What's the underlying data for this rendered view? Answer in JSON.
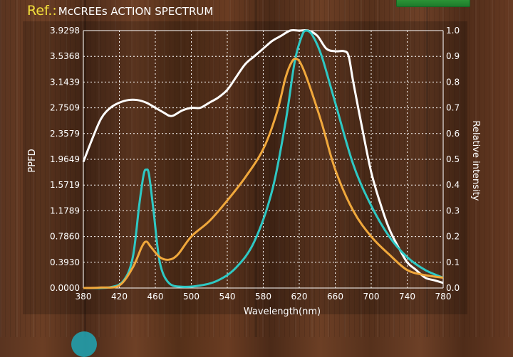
{
  "header": {
    "ref_label": "Ref.:",
    "title": "McCREEs ACTION SPECTRUM"
  },
  "colors": {
    "white_series": "#ffffff",
    "teal_series": "#2ec8c4",
    "orange_series": "#f0a83c",
    "ref_label": "#f3e03b",
    "button": "#2f9c3a"
  },
  "chart_data": {
    "type": "line",
    "xlabel": "Wavelength(nm)",
    "ylabel_left": "PPFD",
    "ylabel_right": "Relative intensity",
    "xlim": [
      380,
      780
    ],
    "ylim_left": [
      0,
      3.9298
    ],
    "ylim_right": [
      0,
      1.0
    ],
    "x_ticks": [
      "380",
      "420",
      "460",
      "500",
      "540",
      "580",
      "620",
      "660",
      "700",
      "740",
      "780"
    ],
    "y_ticks_left": [
      "0.0000",
      "0.3930",
      "0.7860",
      "1.1789",
      "1.5719",
      "1.9649",
      "2.3579",
      "2.7509",
      "3.1439",
      "3.5368",
      "3.9298"
    ],
    "y_ticks_right": [
      "0.0",
      "0.1",
      "0.2",
      "0.3",
      "0.4",
      "0.5",
      "0.6",
      "0.7",
      "0.8",
      "0.9",
      "1.0"
    ],
    "grid": true,
    "series": [
      {
        "color": "white",
        "points": [
          [
            380,
            0.49
          ],
          [
            390,
            0.58
          ],
          [
            400,
            0.66
          ],
          [
            410,
            0.7
          ],
          [
            420,
            0.72
          ],
          [
            430,
            0.73
          ],
          [
            440,
            0.73
          ],
          [
            450,
            0.72
          ],
          [
            460,
            0.7
          ],
          [
            470,
            0.68
          ],
          [
            475,
            0.67
          ],
          [
            480,
            0.67
          ],
          [
            490,
            0.69
          ],
          [
            500,
            0.7
          ],
          [
            510,
            0.7
          ],
          [
            520,
            0.72
          ],
          [
            530,
            0.74
          ],
          [
            540,
            0.77
          ],
          [
            550,
            0.82
          ],
          [
            560,
            0.87
          ],
          [
            570,
            0.9
          ],
          [
            580,
            0.93
          ],
          [
            590,
            0.96
          ],
          [
            600,
            0.98
          ],
          [
            610,
            1.0
          ],
          [
            620,
            1.0
          ],
          [
            630,
            1.0
          ],
          [
            640,
            0.98
          ],
          [
            650,
            0.93
          ],
          [
            660,
            0.92
          ],
          [
            670,
            0.92
          ],
          [
            675,
            0.9
          ],
          [
            680,
            0.8
          ],
          [
            690,
            0.62
          ],
          [
            700,
            0.45
          ],
          [
            710,
            0.33
          ],
          [
            720,
            0.23
          ],
          [
            730,
            0.16
          ],
          [
            740,
            0.1
          ],
          [
            750,
            0.07
          ],
          [
            760,
            0.04
          ],
          [
            770,
            0.03
          ],
          [
            780,
            0.02
          ]
        ]
      },
      {
        "color": "teal",
        "points": [
          [
            380,
            0.0
          ],
          [
            410,
            0.003
          ],
          [
            425,
            0.03
          ],
          [
            435,
            0.12
          ],
          [
            442,
            0.32
          ],
          [
            447,
            0.44
          ],
          [
            450,
            0.46
          ],
          [
            453,
            0.44
          ],
          [
            458,
            0.3
          ],
          [
            465,
            0.1
          ],
          [
            475,
            0.02
          ],
          [
            490,
            0.005
          ],
          [
            510,
            0.01
          ],
          [
            530,
            0.03
          ],
          [
            550,
            0.08
          ],
          [
            570,
            0.18
          ],
          [
            590,
            0.38
          ],
          [
            605,
            0.65
          ],
          [
            615,
            0.88
          ],
          [
            623,
            0.98
          ],
          [
            628,
            1.0
          ],
          [
            635,
            0.98
          ],
          [
            645,
            0.9
          ],
          [
            660,
            0.72
          ],
          [
            680,
            0.48
          ],
          [
            700,
            0.32
          ],
          [
            720,
            0.2
          ],
          [
            740,
            0.12
          ],
          [
            760,
            0.07
          ],
          [
            780,
            0.04
          ]
        ]
      },
      {
        "color": "orange",
        "points": [
          [
            380,
            0.0
          ],
          [
            400,
            0.002
          ],
          [
            420,
            0.01
          ],
          [
            435,
            0.08
          ],
          [
            445,
            0.16
          ],
          [
            450,
            0.18
          ],
          [
            455,
            0.16
          ],
          [
            465,
            0.12
          ],
          [
            475,
            0.11
          ],
          [
            485,
            0.13
          ],
          [
            500,
            0.2
          ],
          [
            520,
            0.26
          ],
          [
            540,
            0.34
          ],
          [
            560,
            0.43
          ],
          [
            580,
            0.54
          ],
          [
            595,
            0.68
          ],
          [
            605,
            0.82
          ],
          [
            612,
            0.88
          ],
          [
            617,
            0.89
          ],
          [
            622,
            0.87
          ],
          [
            630,
            0.8
          ],
          [
            645,
            0.64
          ],
          [
            660,
            0.46
          ],
          [
            680,
            0.3
          ],
          [
            700,
            0.2
          ],
          [
            720,
            0.13
          ],
          [
            740,
            0.07
          ],
          [
            760,
            0.05
          ],
          [
            780,
            0.04
          ]
        ]
      }
    ]
  }
}
